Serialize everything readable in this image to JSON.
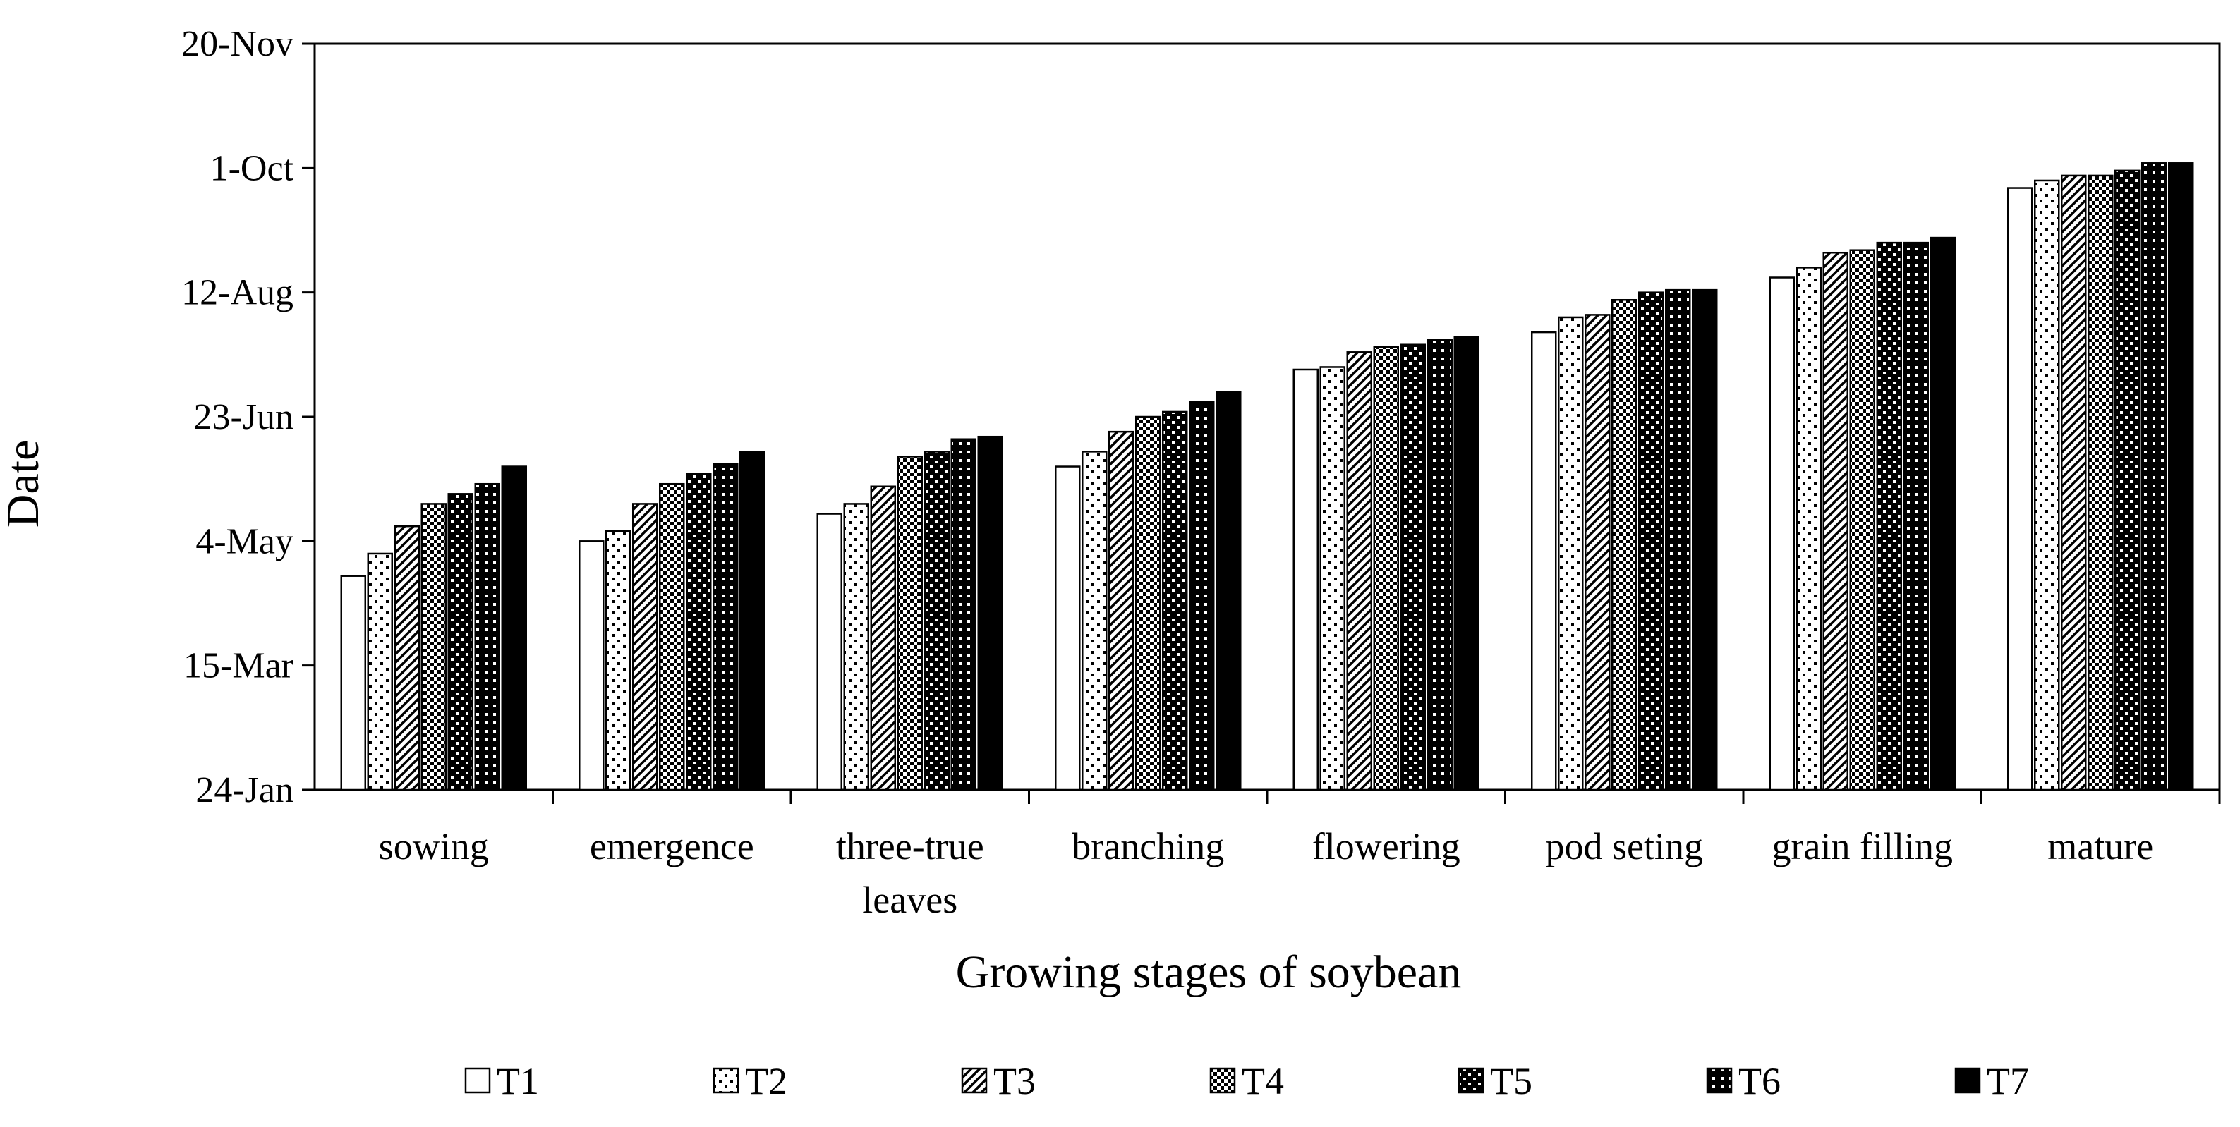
{
  "chart_data": {
    "type": "bar",
    "title": "",
    "xlabel": "Growing stages of soybean",
    "ylabel": "Date",
    "y_ticks": [
      "24-Jan",
      "15-Mar",
      "4-May",
      "23-Jun",
      "12-Aug",
      "1-Oct",
      "20-Nov"
    ],
    "y_tick_values_day_of_year": [
      24,
      74,
      124,
      174,
      224,
      274,
      324
    ],
    "ylim": [
      24,
      324
    ],
    "y_units": "day of year (date shown as d-Mon)",
    "categories": [
      [
        "sowing"
      ],
      [
        "emergence"
      ],
      [
        "three-true",
        "leaves"
      ],
      [
        "branching"
      ],
      [
        "flowering"
      ],
      [
        "pod seting"
      ],
      [
        "grain filling"
      ],
      [
        "mature"
      ]
    ],
    "series": [
      {
        "name": "T1",
        "pattern": "white",
        "values": [
          110,
          124,
          135,
          154,
          193,
          208,
          230,
          266
        ]
      },
      {
        "name": "T2",
        "pattern": "dots-sparse",
        "values": [
          119,
          128,
          139,
          160,
          194,
          214,
          234,
          269
        ]
      },
      {
        "name": "T3",
        "pattern": "diagonal",
        "values": [
          130,
          139,
          146,
          168,
          200,
          215,
          240,
          271
        ]
      },
      {
        "name": "T4",
        "pattern": "checker-small",
        "values": [
          139,
          147,
          158,
          174,
          202,
          221,
          241,
          271
        ]
      },
      {
        "name": "T5",
        "pattern": "checker-large",
        "values": [
          143,
          151,
          160,
          176,
          203,
          224,
          244,
          273
        ]
      },
      {
        "name": "T6",
        "pattern": "dots-dense",
        "values": [
          147,
          155,
          165,
          180,
          205,
          225,
          244,
          276
        ]
      },
      {
        "name": "T7",
        "pattern": "black",
        "values": [
          154,
          160,
          166,
          184,
          206,
          225,
          246,
          276
        ]
      }
    ],
    "legend_position": "bottom",
    "grid": false
  }
}
